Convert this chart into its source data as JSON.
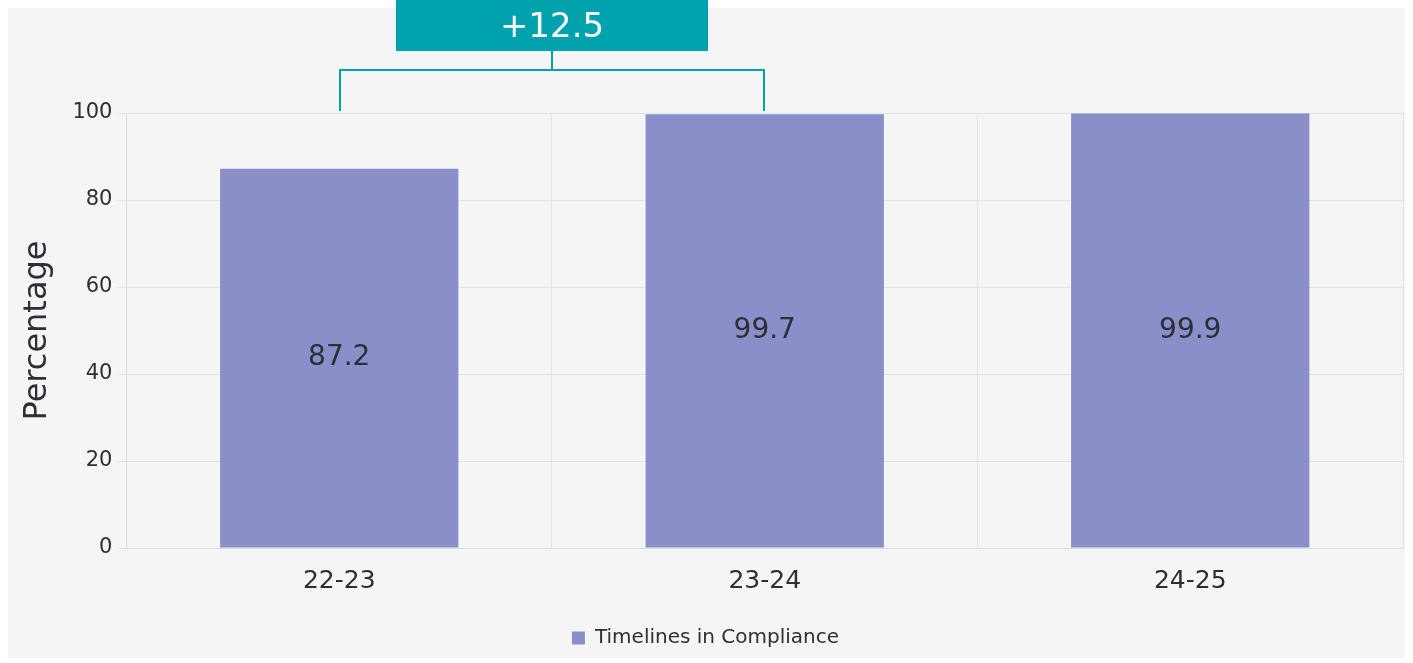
{
  "chart_data": {
    "type": "bar",
    "ylabel": "Percentage",
    "categories": [
      "22-23",
      "23-24",
      "24-25"
    ],
    "series": [
      {
        "name": "Timelines in Compliance",
        "color": "#8a8fc9",
        "values": [
          87.2,
          99.7,
          99.9
        ]
      }
    ],
    "ylim": [
      0,
      100
    ],
    "yticks": [
      0,
      20,
      40,
      60,
      80,
      100
    ],
    "grid": true,
    "legend": "bottom",
    "data_labels": true,
    "annotations": [
      "+12.5"
    ]
  }
}
